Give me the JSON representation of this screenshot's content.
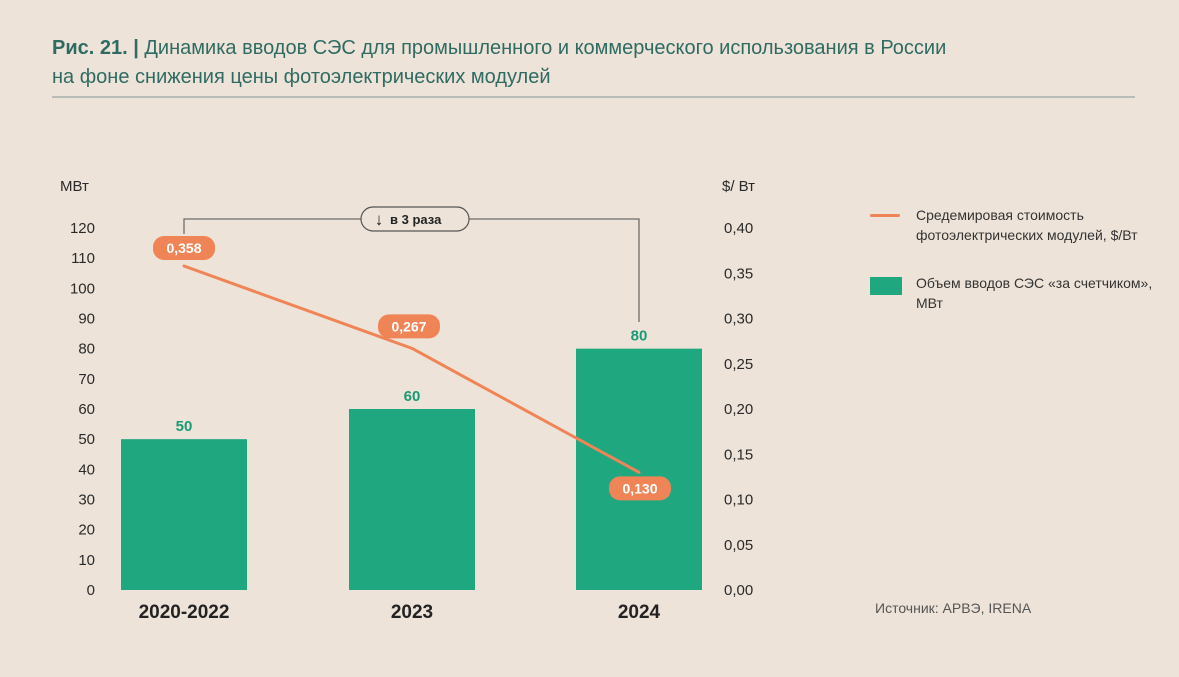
{
  "header": {
    "fig_number": "Рис. 21. |",
    "title_line1": "Динамика вводов СЭС для промышленного и коммерческого использования в России",
    "title_line2": "на фоне снижения цены фотоэлектрических модулей"
  },
  "colors": {
    "background": "#ede3d8",
    "title": "#2f6b63",
    "bar": "#1fa77f",
    "bar_label": "#1a9a76",
    "line": "#ef8557",
    "label_box": "#ef8557"
  },
  "chart_data": {
    "type": "bar",
    "categories": [
      "2020-2022",
      "2023",
      "2024"
    ],
    "series": [
      {
        "name": "Объем вводов СЭС «за счетчиком», МВт",
        "type": "bar",
        "axis": "left",
        "values": [
          50,
          60,
          80
        ],
        "labels": [
          "50",
          "60",
          "80"
        ]
      },
      {
        "name": "Средемировая стоимость фотоэлектрических модулей, $/Вт",
        "type": "line",
        "axis": "right",
        "values": [
          0.358,
          0.267,
          0.13
        ],
        "labels": [
          "0,358",
          "0,267",
          "0,130"
        ]
      }
    ],
    "y_left": {
      "label": "МВт",
      "ylim": [
        0,
        120
      ],
      "ticks": [
        "0",
        "10",
        "20",
        "30",
        "40",
        "50",
        "60",
        "70",
        "80",
        "90",
        "100",
        "110",
        "120"
      ]
    },
    "y_right": {
      "label": "$/ Вт",
      "ylim": [
        0,
        0.4
      ],
      "ticks": [
        "0,00",
        "0,05",
        "0,10",
        "0,15",
        "0,20",
        "0,25",
        "0,30",
        "0,35",
        "0,40"
      ]
    },
    "annotation": {
      "arrow_glyph": "↓",
      "text": "в 3 раза"
    },
    "legend_position": "right",
    "grid": false
  },
  "legend": {
    "line_label": "Средемировая стоимость фотоэлектрических модулей, $/Вт",
    "bar_label": "Объем вводов СЭС «за счетчиком», МВт"
  },
  "source": "Источник: АРВЭ, IRENA"
}
